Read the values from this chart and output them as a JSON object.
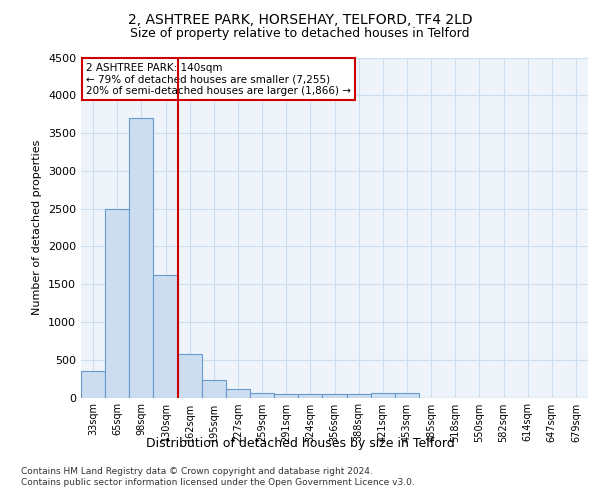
{
  "title1": "2, ASHTREE PARK, HORSEHAY, TELFORD, TF4 2LD",
  "title2": "Size of property relative to detached houses in Telford",
  "xlabel": "Distribution of detached houses by size in Telford",
  "ylabel": "Number of detached properties",
  "footnote": "Contains HM Land Registry data © Crown copyright and database right 2024.\nContains public sector information licensed under the Open Government Licence v3.0.",
  "categories": [
    "33sqm",
    "65sqm",
    "98sqm",
    "130sqm",
    "162sqm",
    "195sqm",
    "227sqm",
    "259sqm",
    "291sqm",
    "324sqm",
    "356sqm",
    "388sqm",
    "421sqm",
    "453sqm",
    "485sqm",
    "518sqm",
    "550sqm",
    "582sqm",
    "614sqm",
    "647sqm",
    "679sqm"
  ],
  "values": [
    350,
    2500,
    3700,
    1625,
    575,
    230,
    110,
    65,
    50,
    50,
    50,
    50,
    65,
    65,
    0,
    0,
    0,
    0,
    0,
    0,
    0
  ],
  "bar_color": "#ccddf0",
  "bar_edge_color": "#6699cc",
  "vline_x": 3.5,
  "vline_color": "#cc0000",
  "annotation_text": "2 ASHTREE PARK: 140sqm\n← 79% of detached houses are smaller (7,255)\n20% of semi-detached houses are larger (1,866) →",
  "annotation_box_color": "#ffffff",
  "annotation_box_edge": "#cc0000",
  "ylim": [
    0,
    4500
  ],
  "yticks": [
    0,
    500,
    1000,
    1500,
    2000,
    2500,
    3000,
    3500,
    4000,
    4500
  ],
  "grid_color": "#ccddee",
  "bg_color": "#eef4fa",
  "title1_fontsize": 10,
  "title2_fontsize": 9,
  "ylabel_fontsize": 8,
  "xlabel_fontsize": 9,
  "footnote_fontsize": 6.5,
  "tick_fontsize": 8,
  "xtick_fontsize": 7,
  "annot_fontsize": 7.5
}
